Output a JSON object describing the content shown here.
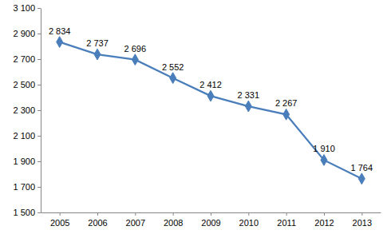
{
  "chart_data": {
    "type": "line",
    "categories": [
      "2005",
      "2006",
      "2007",
      "2008",
      "2009",
      "2010",
      "2011",
      "2012",
      "2013"
    ],
    "values": [
      2834,
      2737,
      2696,
      2552,
      2412,
      2331,
      2267,
      1910,
      1764
    ],
    "value_labels": [
      "2 834",
      "2 737",
      "2 696",
      "2 552",
      "2 412",
      "2 331",
      "2 267",
      "1 910",
      "1 764"
    ],
    "color": "#4a7ebb",
    "marker": "diamond",
    "data_labels": true,
    "grid": false,
    "ylim": [
      1500,
      3100
    ],
    "yticks": [
      {
        "value": 1500,
        "label": "1 500"
      },
      {
        "value": 1700,
        "label": "1 700"
      },
      {
        "value": 1900,
        "label": "1 900"
      },
      {
        "value": 2100,
        "label": "2 100"
      },
      {
        "value": 2300,
        "label": "2 300"
      },
      {
        "value": 2500,
        "label": "2 500"
      },
      {
        "value": 2700,
        "label": "2 700"
      },
      {
        "value": 2900,
        "label": "2 900"
      },
      {
        "value": 3100,
        "label": "3 100"
      }
    ]
  }
}
